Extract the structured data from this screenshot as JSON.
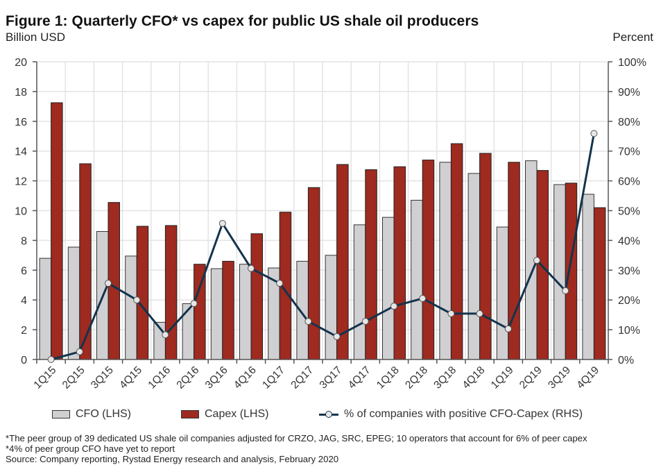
{
  "chart_data": {
    "type": "bar",
    "title": "Figure 1: Quarterly CFO* vs capex for public US shale oil producers",
    "ylabel": "Billion USD",
    "y2label": "Percent",
    "xlabel": "",
    "ylim": [
      0,
      20
    ],
    "y2lim": [
      0,
      100
    ],
    "yticks": [
      "0",
      "2",
      "4",
      "6",
      "8",
      "10",
      "12",
      "14",
      "16",
      "18",
      "20"
    ],
    "y2ticks": [
      "0%",
      "10%",
      "20%",
      "30%",
      "40%",
      "50%",
      "60%",
      "70%",
      "80%",
      "90%",
      "100%"
    ],
    "grid": true,
    "legend_position": "bottom",
    "categories": [
      "1Q15",
      "2Q15",
      "3Q15",
      "4Q15",
      "1Q16",
      "2Q16",
      "3Q16",
      "4Q16",
      "1Q17",
      "2Q17",
      "3Q17",
      "4Q17",
      "1Q18",
      "2Q18",
      "3Q18",
      "4Q18",
      "1Q19",
      "2Q19",
      "3Q19",
      "4Q19"
    ],
    "series": [
      {
        "name": "CFO (LHS)",
        "type": "bar",
        "axis": "left",
        "color": "#d0cfd2",
        "values": [
          6.8,
          7.55,
          8.6,
          6.95,
          2.5,
          3.75,
          6.1,
          6.4,
          6.15,
          6.6,
          7.0,
          9.05,
          9.55,
          10.7,
          13.25,
          12.5,
          8.9,
          13.35,
          11.75,
          11.1
        ]
      },
      {
        "name": "Capex (LHS)",
        "type": "bar",
        "axis": "left",
        "color": "#9e2a20",
        "values": [
          17.25,
          13.15,
          10.55,
          8.95,
          9.0,
          6.4,
          6.6,
          8.45,
          9.9,
          11.55,
          13.1,
          12.75,
          12.95,
          13.4,
          14.5,
          13.85,
          13.25,
          12.7,
          11.85,
          10.2
        ]
      },
      {
        "name": "% of companies with positive CFO-Capex (RHS)",
        "type": "line",
        "axis": "right",
        "color": "#13334d",
        "marker_fill": "#e6e6e6",
        "values": [
          0,
          2.6,
          25.6,
          20.0,
          8.3,
          18.8,
          45.7,
          30.6,
          25.6,
          12.8,
          7.7,
          12.8,
          17.9,
          20.5,
          15.4,
          15.4,
          10.3,
          33.3,
          23.1,
          75.9
        ]
      }
    ]
  },
  "footnotes": [
    "*The peer group of 39 dedicated US shale oil companies adjusted for CRZO, JAG, SRC, EPEG; 10 operators that account for 6% of peer capex",
    "*4% of peer group CFO have yet to report",
    "Source: Company reporting, Rystad Energy research and analysis, February 2020"
  ]
}
